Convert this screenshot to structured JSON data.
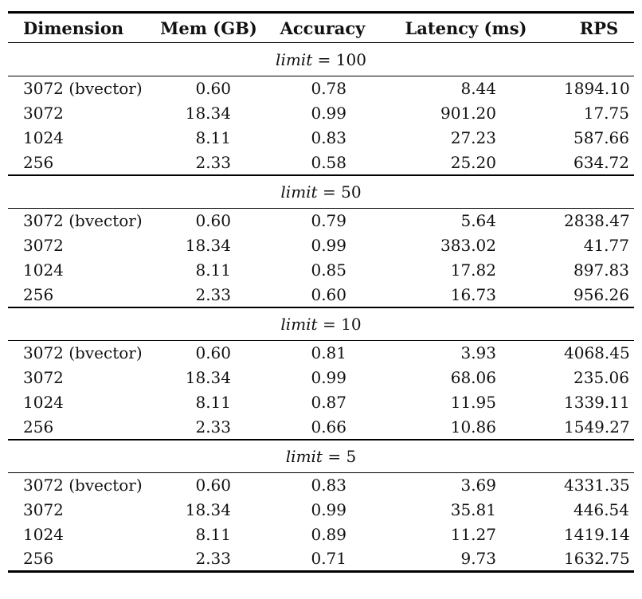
{
  "table": {
    "headers": {
      "dimension": "Dimension",
      "mem": "Mem (GB)",
      "accuracy": "Accuracy",
      "latency": "Latency (ms)",
      "rps": "RPS"
    },
    "sections": [
      {
        "title_word": "limit",
        "title_rest": "= 100",
        "rows": [
          {
            "dimension": "3072 (bvector)",
            "mem": "0.60",
            "accuracy": "0.78",
            "latency": "8.44",
            "rps": "1894.10"
          },
          {
            "dimension": "3072",
            "mem": "18.34",
            "accuracy": "0.99",
            "latency": "901.20",
            "rps": "17.75"
          },
          {
            "dimension": "1024",
            "mem": "8.11",
            "accuracy": "0.83",
            "latency": "27.23",
            "rps": "587.66"
          },
          {
            "dimension": "256",
            "mem": "2.33",
            "accuracy": "0.58",
            "latency": "25.20",
            "rps": "634.72"
          }
        ]
      },
      {
        "title_word": "limit",
        "title_rest": "= 50",
        "rows": [
          {
            "dimension": "3072 (bvector)",
            "mem": "0.60",
            "accuracy": "0.79",
            "latency": "5.64",
            "rps": "2838.47"
          },
          {
            "dimension": "3072",
            "mem": "18.34",
            "accuracy": "0.99",
            "latency": "383.02",
            "rps": "41.77"
          },
          {
            "dimension": "1024",
            "mem": "8.11",
            "accuracy": "0.85",
            "latency": "17.82",
            "rps": "897.83"
          },
          {
            "dimension": "256",
            "mem": "2.33",
            "accuracy": "0.60",
            "latency": "16.73",
            "rps": "956.26"
          }
        ]
      },
      {
        "title_word": "limit",
        "title_rest": "= 10",
        "rows": [
          {
            "dimension": "3072 (bvector)",
            "mem": "0.60",
            "accuracy": "0.81",
            "latency": "3.93",
            "rps": "4068.45"
          },
          {
            "dimension": "3072",
            "mem": "18.34",
            "accuracy": "0.99",
            "latency": "68.06",
            "rps": "235.06"
          },
          {
            "dimension": "1024",
            "mem": "8.11",
            "accuracy": "0.87",
            "latency": "11.95",
            "rps": "1339.11"
          },
          {
            "dimension": "256",
            "mem": "2.33",
            "accuracy": "0.66",
            "latency": "10.86",
            "rps": "1549.27"
          }
        ]
      },
      {
        "title_word": "limit",
        "title_rest": "= 5",
        "rows": [
          {
            "dimension": "3072 (bvector)",
            "mem": "0.60",
            "accuracy": "0.83",
            "latency": "3.69",
            "rps": "4331.35"
          },
          {
            "dimension": "3072",
            "mem": "18.34",
            "accuracy": "0.99",
            "latency": "35.81",
            "rps": "446.54"
          },
          {
            "dimension": "1024",
            "mem": "8.11",
            "accuracy": "0.89",
            "latency": "11.27",
            "rps": "1419.14"
          },
          {
            "dimension": "256",
            "mem": "2.33",
            "accuracy": "0.71",
            "latency": "9.73",
            "rps": "1632.75"
          }
        ]
      }
    ],
    "colors": {
      "text": "#111111",
      "rule": "#000000",
      "background": "#ffffff"
    }
  }
}
